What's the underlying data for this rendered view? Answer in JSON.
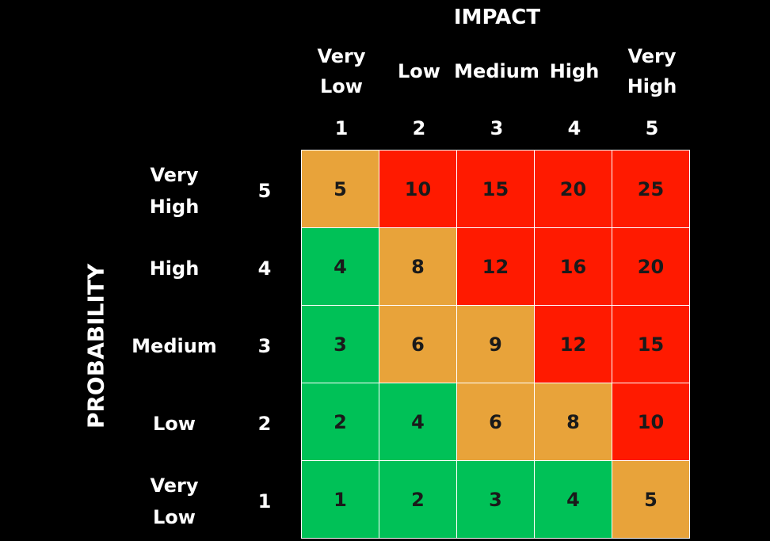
{
  "impact_title": "IMPACT",
  "probability_title": "PROBABILITY",
  "impact": {
    "labels": [
      "Very\nLow",
      "Low",
      "Medium",
      "High",
      "Very\nHigh"
    ],
    "numbers": [
      "1",
      "2",
      "3",
      "4",
      "5"
    ]
  },
  "probability": {
    "labels": [
      "Very\nHigh",
      "High",
      "Medium",
      "Low",
      "Very\nLow"
    ],
    "numbers": [
      "5",
      "4",
      "3",
      "2",
      "1"
    ]
  },
  "matrix": {
    "rows": [
      [
        "5",
        "10",
        "15",
        "20",
        "25"
      ],
      [
        "4",
        "8",
        "12",
        "16",
        "20"
      ],
      [
        "3",
        "6",
        "9",
        "12",
        "15"
      ],
      [
        "2",
        "4",
        "6",
        "8",
        "10"
      ],
      [
        "1",
        "2",
        "3",
        "4",
        "5"
      ]
    ],
    "levels": [
      [
        "med",
        "high",
        "high",
        "high",
        "high"
      ],
      [
        "low",
        "med",
        "high",
        "high",
        "high"
      ],
      [
        "low",
        "med",
        "med",
        "high",
        "high"
      ],
      [
        "low",
        "low",
        "med",
        "med",
        "high"
      ],
      [
        "low",
        "low",
        "low",
        "low",
        "med"
      ]
    ]
  },
  "colors": {
    "low": "#00c157",
    "med": "#e8a33a",
    "high": "#ff1a00",
    "background": "#000000",
    "text": "#ffffff"
  }
}
